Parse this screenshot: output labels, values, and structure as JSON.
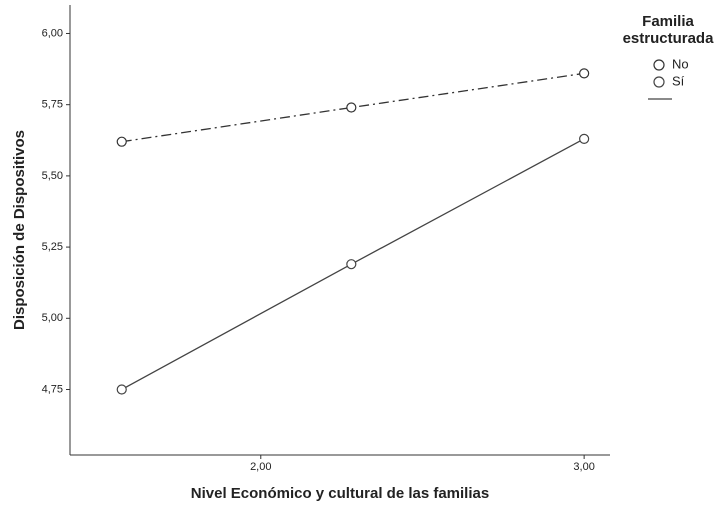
{
  "chart_data": {
    "type": "line",
    "x_label": "Nivel Económico y cultural de las familias",
    "y_label": "Disposición de Dispositivos",
    "legend_title": "Familia estructurada",
    "legend_position": "right",
    "grid": false,
    "x": [
      1.57,
      2.28,
      3.0
    ],
    "series": [
      {
        "name": "No",
        "color": "#333333",
        "dash": "dashdot",
        "values": [
          5.62,
          5.74,
          5.86
        ]
      },
      {
        "name": "Sí",
        "color": "#444444",
        "dash": "solid",
        "values": [
          4.75,
          5.19,
          5.63
        ]
      }
    ],
    "xlim": [
      1.41,
      3.08
    ],
    "ylim": [
      4.52,
      6.1
    ],
    "xticks": [
      {
        "value": 2,
        "label": "2,00"
      },
      {
        "value": 3,
        "label": "3,00"
      }
    ],
    "yticks": [
      {
        "value": 4.75,
        "label": "4,75"
      },
      {
        "value": 5,
        "label": "5,00"
      },
      {
        "value": 5.25,
        "label": "5,25"
      },
      {
        "value": 5.5,
        "label": "5,50"
      },
      {
        "value": 5.75,
        "label": "5,75"
      },
      {
        "value": 6,
        "label": "6,00"
      }
    ]
  }
}
